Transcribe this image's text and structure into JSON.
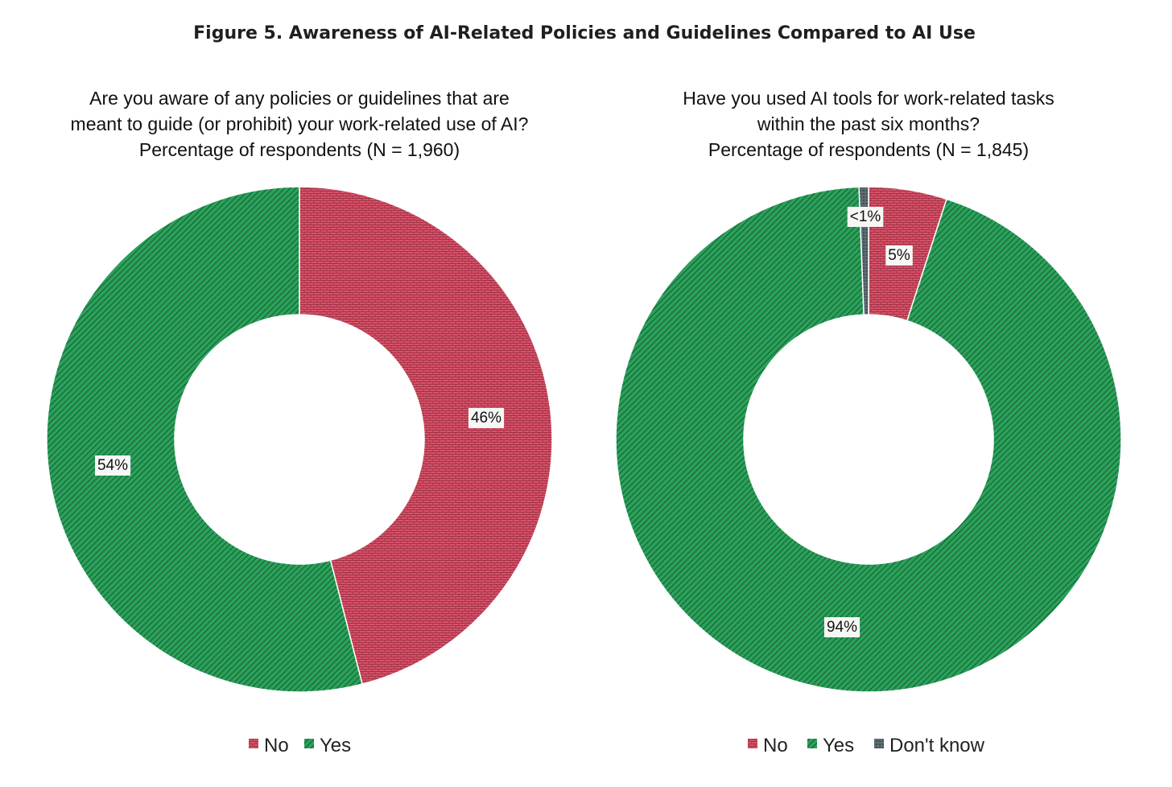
{
  "figure_title": "Figure 5. Awareness of AI-Related Policies and Guidelines Compared to AI Use",
  "colors": {
    "no": "#d6536a",
    "yes": "#2aa15a",
    "dont_know": "#5c6c72"
  },
  "chart_data": [
    {
      "type": "pie",
      "subtype": "donut",
      "subtitle_lines": [
        "Are you aware of any policies or guidelines that are",
        "meant to guide (or prohibit) your work-related use of AI?",
        "Percentage of respondents (N = 1,960)"
      ],
      "slices": [
        {
          "name": "No",
          "value": 46,
          "label": "46%",
          "color": "#d6536a",
          "pattern": "brick"
        },
        {
          "name": "Yes",
          "value": 54,
          "label": "54%",
          "color": "#2aa15a",
          "pattern": "hatch"
        }
      ],
      "legend": [
        "No",
        "Yes"
      ],
      "legend_position": "bottom"
    },
    {
      "type": "pie",
      "subtype": "donut",
      "subtitle_lines": [
        "Have you used AI tools for work-related tasks",
        "within the past six months?",
        "Percentage of respondents (N = 1,845)"
      ],
      "slices": [
        {
          "name": "No",
          "value": 5,
          "label": "5%",
          "color": "#d6536a",
          "pattern": "brick"
        },
        {
          "name": "Yes",
          "value": 94.4,
          "label": "94%",
          "color": "#2aa15a",
          "pattern": "hatch"
        },
        {
          "name": "Don't know",
          "value": 0.6,
          "label": "<1%",
          "color": "#5c6c72",
          "pattern": "solid"
        }
      ],
      "legend": [
        "No",
        "Yes",
        "Don't know"
      ],
      "legend_position": "bottom"
    }
  ]
}
